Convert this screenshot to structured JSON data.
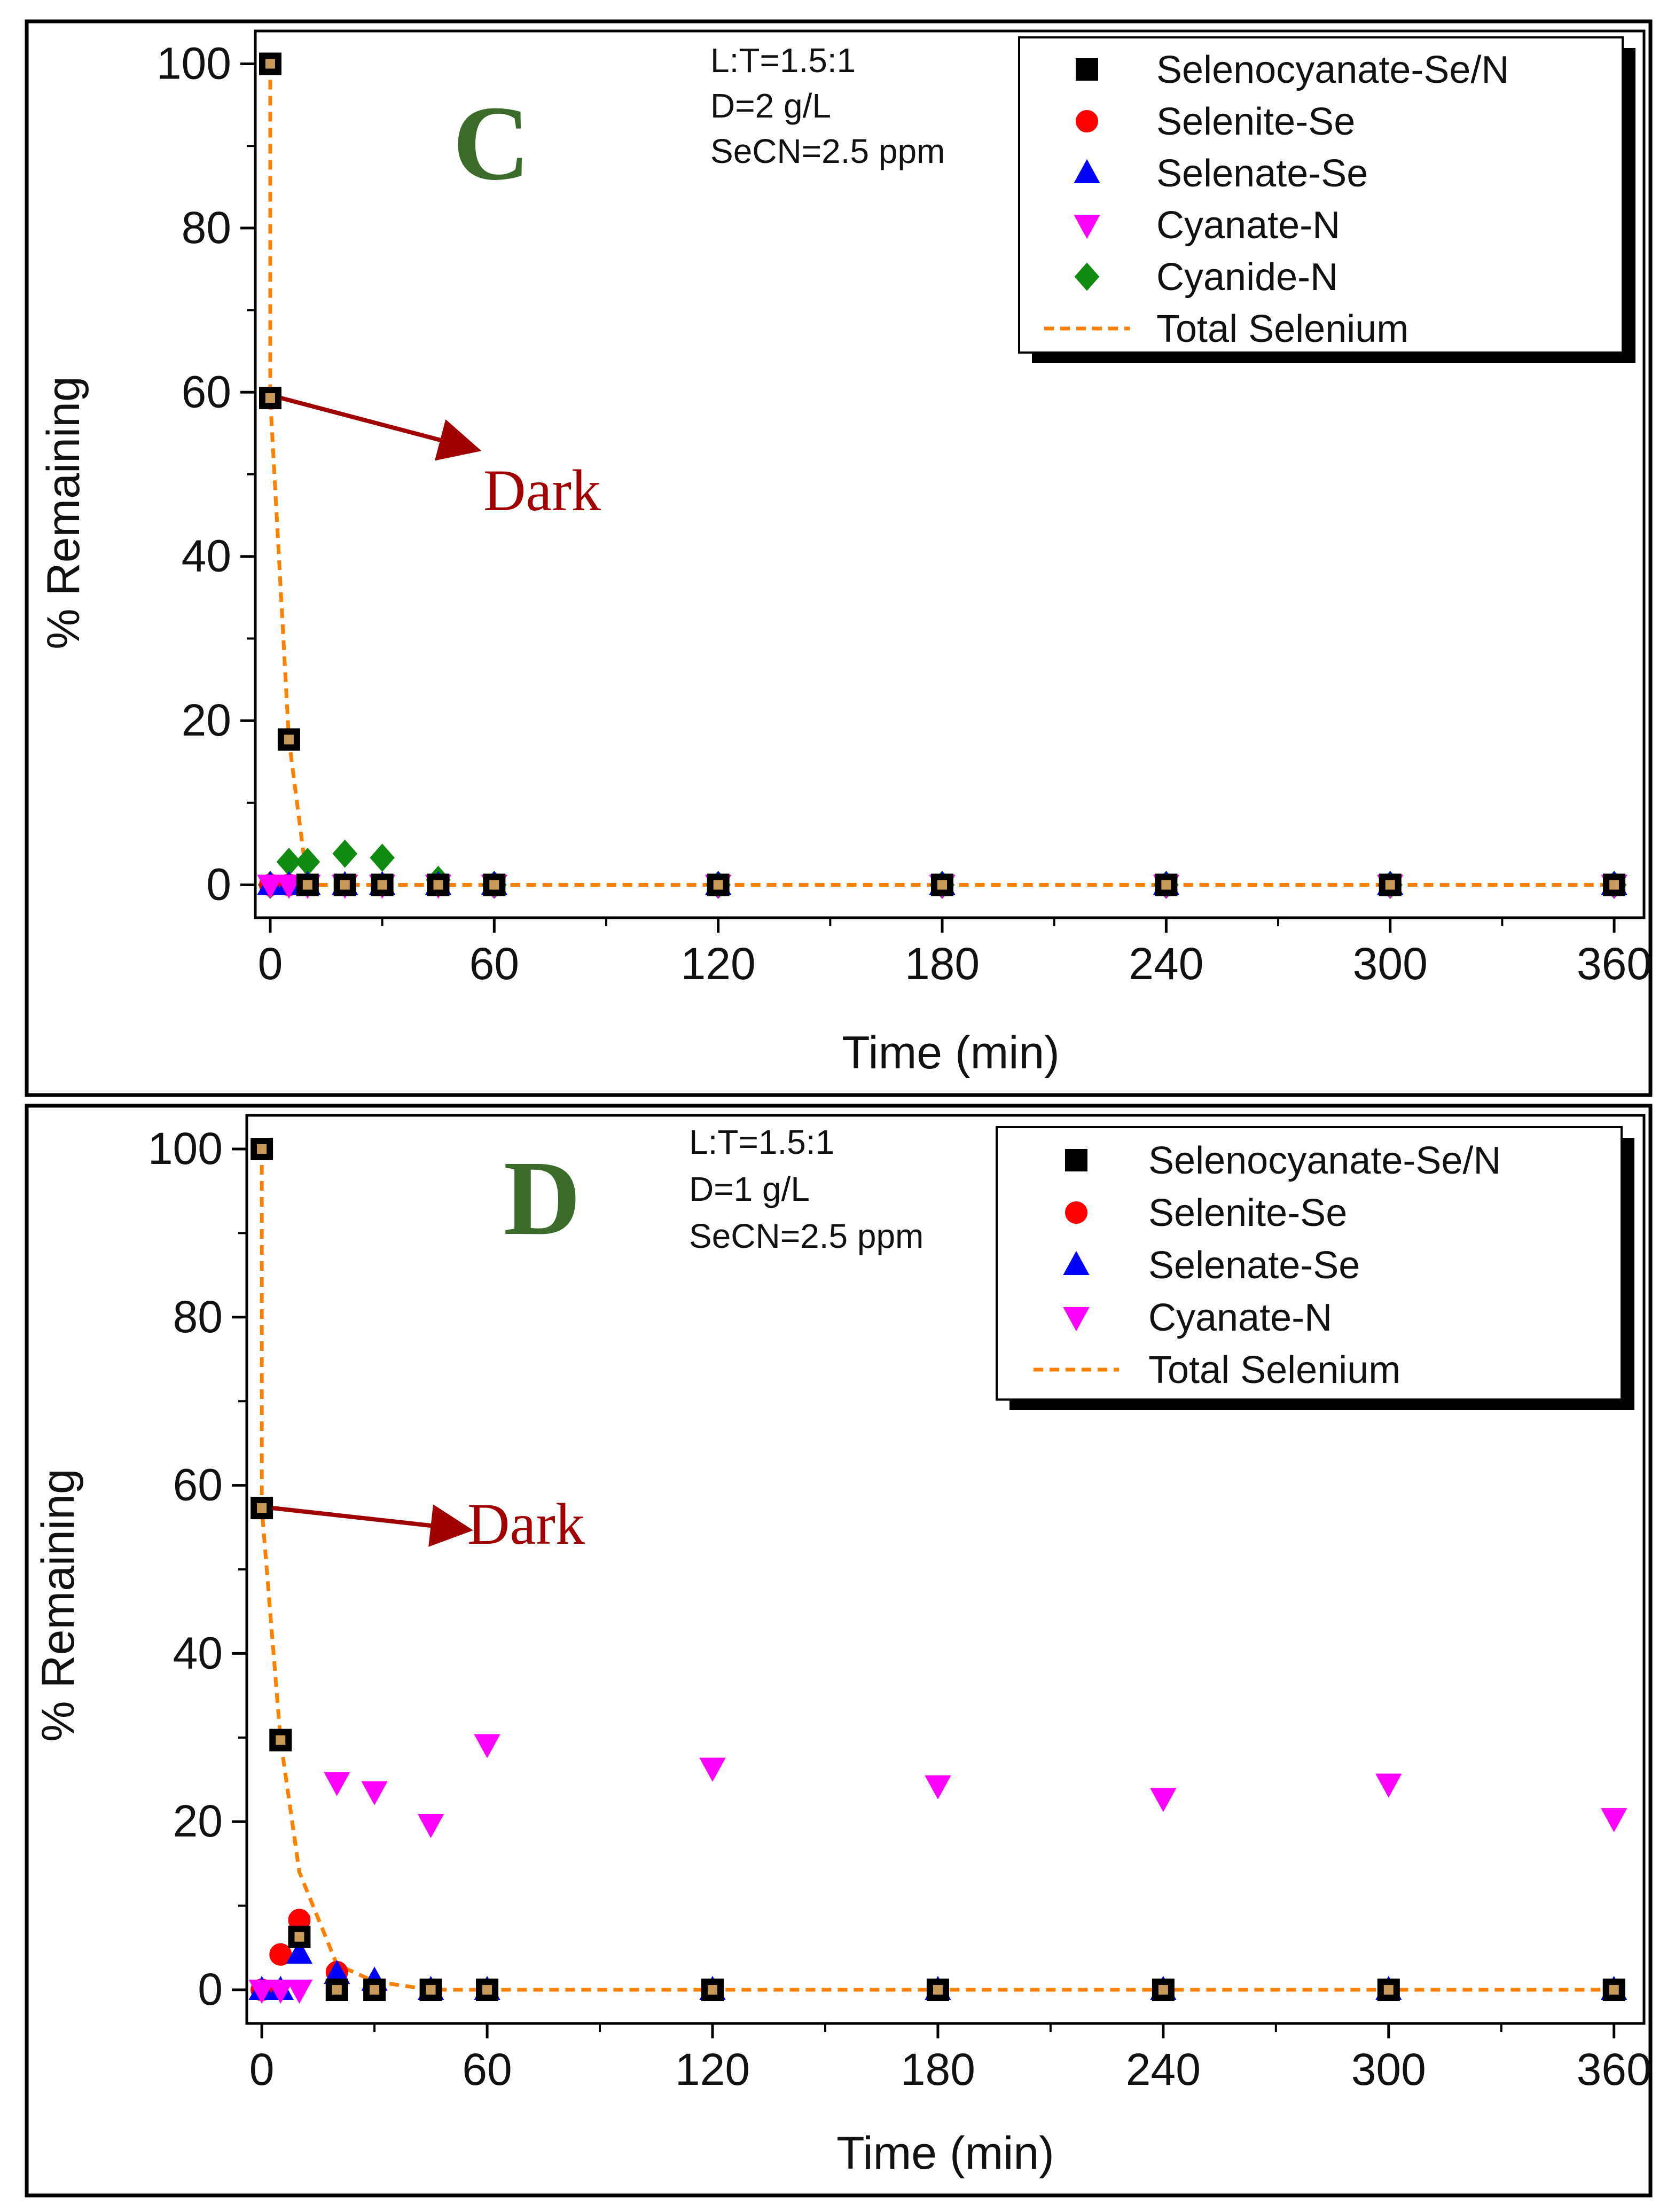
{
  "figure": {
    "colors": {
      "selenocyanate": "#000000",
      "selenite": "#ff0000",
      "selenate": "#0000ff",
      "cyanate": "#ff00ff",
      "cyanide": "#118a11",
      "total": "#ff8000",
      "panel_letter": "#3b6b2a",
      "dark_arrow": "#a00000"
    }
  },
  "chart_data": [
    {
      "type": "scatter",
      "panel_label": "C",
      "conditions": [
        "L:T=1.5:1",
        "D=2 g/L",
        "SeCN=2.5 ppm"
      ],
      "xlabel": "Time (min)",
      "ylabel": "% Remaining",
      "xlim": [
        -4,
        368
      ],
      "ylim": [
        -4,
        104
      ],
      "xticks": [
        0,
        60,
        120,
        180,
        240,
        300,
        360
      ],
      "yticks": [
        0,
        20,
        40,
        60,
        80,
        100
      ],
      "annotation": {
        "text": "Dark",
        "from": [
          0,
          59.3
        ]
      },
      "legend": [
        "Selenocyanate-Se/N",
        "Selenite-Se",
        "Selenate-Se",
        "Cyanate-N",
        "Cyanide-N",
        "Total Selenium"
      ],
      "legend_position": "top-right",
      "series": [
        {
          "name": "Selenocyanate-Se/N",
          "marker": "square",
          "color": "#000000",
          "x": [
            0,
            0,
            5,
            10,
            20,
            30,
            45,
            60,
            120,
            180,
            240,
            300,
            360
          ],
          "y": [
            100,
            59.3,
            17.7,
            0,
            0,
            0,
            0,
            0,
            0,
            0,
            0,
            0,
            0
          ]
        },
        {
          "name": "Selenite-Se",
          "marker": "circle",
          "color": "#ff0000",
          "x": [
            0,
            5,
            10,
            20,
            30,
            45,
            60,
            120,
            180,
            240,
            300,
            360
          ],
          "y": [
            0,
            0,
            0,
            0,
            0,
            0,
            0,
            0,
            0,
            0,
            0,
            0
          ]
        },
        {
          "name": "Selenate-Se",
          "marker": "triangle-up",
          "color": "#0000ff",
          "x": [
            0,
            5,
            10,
            20,
            30,
            45,
            60,
            120,
            180,
            240,
            300,
            360
          ],
          "y": [
            0,
            0,
            0,
            0,
            0,
            0,
            0,
            0,
            0,
            0,
            0,
            0
          ]
        },
        {
          "name": "Cyanate-N",
          "marker": "triangle-down",
          "color": "#ff00ff",
          "x": [
            0,
            5,
            10,
            20,
            30,
            45,
            60,
            120,
            180,
            240,
            300,
            360
          ],
          "y": [
            0,
            0,
            0,
            0,
            0,
            0,
            0,
            0,
            0,
            0,
            0,
            0
          ]
        },
        {
          "name": "Cyanide-N",
          "marker": "diamond",
          "color": "#118a11",
          "x": [
            0,
            5,
            10,
            20,
            30,
            45,
            60,
            120,
            180,
            240,
            300,
            360
          ],
          "y": [
            0,
            2.8,
            2.8,
            3.8,
            3.3,
            0.6,
            0,
            0,
            0,
            0,
            0,
            0
          ]
        },
        {
          "name": "Total Selenium",
          "marker": "dashed-line",
          "color": "#ff8000",
          "x": [
            0,
            0,
            5,
            10,
            20,
            30,
            45,
            60,
            120,
            180,
            240,
            300,
            360
          ],
          "y": [
            100,
            59.3,
            17.7,
            0,
            0,
            0,
            0,
            0,
            0,
            0,
            0,
            0,
            0
          ]
        }
      ]
    },
    {
      "type": "scatter",
      "panel_label": "D",
      "conditions": [
        "L:T=1.5:1",
        "D=1 g/L",
        "SeCN=2.5 ppm"
      ],
      "xlabel": "Time (min)",
      "ylabel": "% Remaining",
      "xlim": [
        -4,
        368
      ],
      "ylim": [
        -4,
        104
      ],
      "xticks": [
        0,
        60,
        120,
        180,
        240,
        300,
        360
      ],
      "yticks": [
        0,
        20,
        40,
        60,
        80,
        100
      ],
      "annotation": {
        "text": "Dark",
        "from": [
          0,
          57.3
        ]
      },
      "legend": [
        "Selenocyanate-Se/N",
        "Selenite-Se",
        "Selenate-Se",
        "Cyanate-N",
        "Total Selenium"
      ],
      "legend_position": "top-right",
      "series": [
        {
          "name": "Selenocyanate-Se/N",
          "marker": "square",
          "color": "#000000",
          "x": [
            0,
            0,
            5,
            10,
            20,
            30,
            45,
            60,
            120,
            180,
            240,
            300,
            360
          ],
          "y": [
            100,
            57.3,
            29.7,
            6.3,
            0,
            0,
            0,
            0,
            0,
            0,
            0,
            0,
            0
          ]
        },
        {
          "name": "Selenite-Se",
          "marker": "circle",
          "color": "#ff0000",
          "x": [
            0,
            5,
            10,
            20,
            30,
            45,
            60,
            120,
            180,
            240,
            300,
            360
          ],
          "y": [
            0,
            4.2,
            8.3,
            2.1,
            0,
            0,
            0,
            0,
            0,
            0,
            0,
            0
          ]
        },
        {
          "name": "Selenate-Se",
          "marker": "triangle-up",
          "color": "#0000ff",
          "x": [
            0,
            5,
            10,
            20,
            30,
            45,
            60,
            120,
            180,
            240,
            300,
            360
          ],
          "y": [
            0,
            0,
            4.3,
            1.9,
            1.1,
            0,
            0,
            0,
            0,
            0,
            0,
            0
          ]
        },
        {
          "name": "Cyanate-N",
          "marker": "triangle-down",
          "color": "#ff00ff",
          "x": [
            0,
            5,
            10,
            20,
            30,
            45,
            60,
            120,
            180,
            240,
            300,
            360
          ],
          "y": [
            0,
            0,
            0,
            24.7,
            23.6,
            19.7,
            29.2,
            26.4,
            24.3,
            22.8,
            24.5,
            20.4
          ]
        },
        {
          "name": "Total Selenium",
          "marker": "dashed-line",
          "color": "#ff8000",
          "x": [
            0,
            0,
            5,
            10,
            20,
            30,
            45,
            60,
            120,
            180,
            240,
            300,
            360
          ],
          "y": [
            100,
            57.3,
            29.7,
            14,
            3,
            1,
            0,
            0,
            0,
            0,
            0,
            0,
            0
          ]
        }
      ]
    }
  ]
}
